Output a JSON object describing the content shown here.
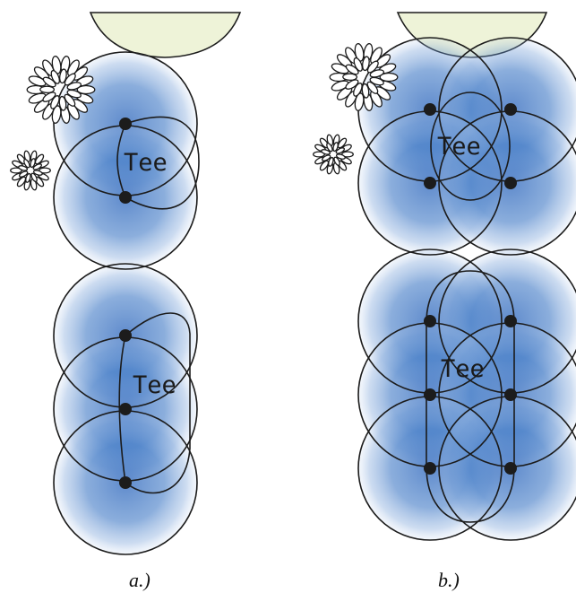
{
  "panels": [
    {
      "label": "Tee",
      "caption": "a.)"
    },
    {
      "label": "Tee",
      "caption": "b.)"
    }
  ],
  "colors": {
    "coverage": "#2d6cc0",
    "green": "#eef3d8",
    "outline": "#1b1b1b"
  }
}
